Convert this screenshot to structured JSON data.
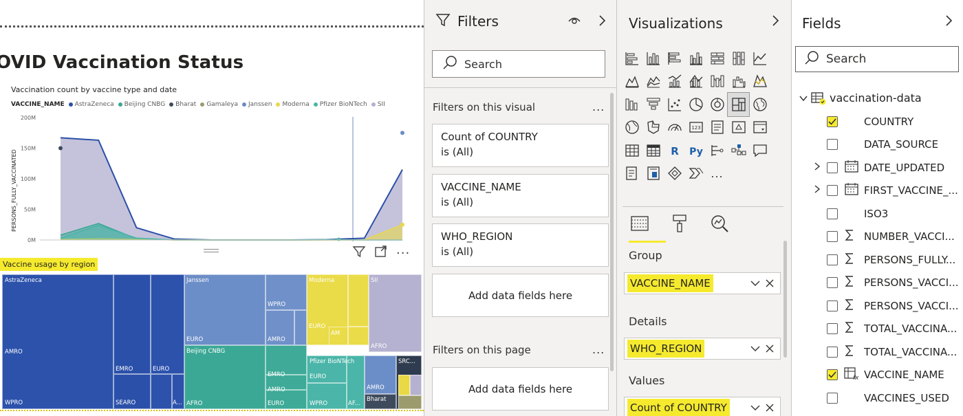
{
  "report": {
    "title": "OVID Vaccination Status",
    "chart": {
      "title": "Vaccination count by vaccine type and date",
      "legend_title": "VACCINE_NAME",
      "ylabel": "PERSONS_FULLY_VACCINATED",
      "ytick_labels": [
        "200M",
        "150M",
        "100M",
        "50M",
        "0M"
      ]
    },
    "treemap_title": "Vaccine usage by region",
    "treemap_labels": {
      "astrazeneca": "AstraZeneca",
      "amro1": "AMRO",
      "wpro1": "WPRO",
      "emro1": "EMRO",
      "searo1": "SEARO",
      "euro1": "EURO",
      "a1": "A...",
      "janssen": "Janssen",
      "wpro2": "WPRO",
      "euro2": "EURO",
      "amro2": "AMRO",
      "beijing": "Beijing CNBG",
      "emro2": "EMRO",
      "amro3": "AMRO",
      "euro3": "EURO",
      "afro1": "AFRO",
      "moderna": "Moderna",
      "euro4": "EURO",
      "am": "AM",
      "sii": "SII",
      "afro2": "AFRO",
      "pfizer": "Pfizer BioNTech",
      "euro5": "EURO",
      "wpro3": "WPRO",
      "af": "AF...",
      "amro4": "AMRO",
      "bharat": "Bharat",
      "src": "SRC..."
    }
  },
  "chart_data": {
    "type": "area",
    "title": "Vaccination count by vaccine type and date",
    "xlabel": "",
    "ylabel": "PERSONS_FULLY_VACCINATED",
    "ylim": [
      0,
      200000000
    ],
    "legend_placement": "top-left",
    "grid": false,
    "series": [
      {
        "name": "AstraZeneca",
        "color": "#2b4fa8",
        "values": [
          167000000,
          163000000,
          20000000,
          1500000,
          0,
          0,
          0,
          500000,
          3000000,
          115000000
        ]
      },
      {
        "name": "Beijing CNBG",
        "color": "#3aa895",
        "values": [
          8000000,
          27000000,
          2000000,
          0,
          0,
          0,
          0,
          0,
          0,
          0
        ]
      },
      {
        "name": "Bharat",
        "color": "#3f4a5a",
        "values": [
          150000000,
          null,
          null,
          null,
          null,
          null,
          null,
          null,
          null,
          null
        ]
      },
      {
        "name": "Gamaleya",
        "color": "#9b9b6e",
        "values": [
          0,
          0,
          0,
          0,
          0,
          0,
          0,
          0,
          0,
          0
        ]
      },
      {
        "name": "Janssen",
        "color": "#6b8cc7",
        "values": [
          null,
          null,
          null,
          null,
          null,
          null,
          null,
          null,
          null,
          175000000
        ]
      },
      {
        "name": "Moderna",
        "color": "#e8d84a",
        "values": [
          1000000,
          2000000,
          1000000,
          0,
          0,
          0,
          0,
          0,
          0,
          25000000
        ]
      },
      {
        "name": "Pfizer BioNTech",
        "color": "#4ab5a8",
        "values": [
          3000000,
          24000000,
          3000000,
          0,
          0,
          0,
          0,
          500000,
          0,
          0
        ]
      },
      {
        "name": "SII",
        "color": "#b4b0cf",
        "values": [
          0,
          0,
          0,
          0,
          0,
          0,
          0,
          0,
          0,
          0
        ]
      }
    ]
  },
  "filters": {
    "title": "Filters",
    "search_placeholder": "Search",
    "section_visual": "Filters on this visual",
    "section_page": "Filters on this page",
    "more": "...",
    "cards": [
      {
        "name": "Count of COUNTRY",
        "value": "is (All)"
      },
      {
        "name": "VACCINE_NAME",
        "value": "is (All)"
      },
      {
        "name": "WHO_REGION",
        "value": "is (All)"
      }
    ],
    "add_visual": "Add data fields here",
    "add_page": "Add data fields here"
  },
  "visualizations": {
    "title": "Visualizations",
    "more": "...",
    "wells": [
      {
        "label": "Group",
        "value": "VACCINE_NAME"
      },
      {
        "label": "Details",
        "value": "WHO_REGION"
      },
      {
        "label": "Values",
        "value": "Count of COUNTRY"
      }
    ]
  },
  "fields": {
    "title": "Fields",
    "search_placeholder": "Search",
    "table_name": "vaccination-data",
    "items": [
      {
        "name": "COUNTRY",
        "checked": true,
        "type": "text",
        "expandable": false
      },
      {
        "name": "DATA_SOURCE",
        "checked": false,
        "type": "text",
        "expandable": false
      },
      {
        "name": "DATE_UPDATED",
        "checked": false,
        "type": "date",
        "expandable": true
      },
      {
        "name": "FIRST_VACCINE_...",
        "checked": false,
        "type": "date",
        "expandable": true
      },
      {
        "name": "ISO3",
        "checked": false,
        "type": "text",
        "expandable": false
      },
      {
        "name": "NUMBER_VACCI...",
        "checked": false,
        "type": "sum",
        "expandable": false
      },
      {
        "name": "PERSONS_FULLY...",
        "checked": false,
        "type": "sum",
        "expandable": false
      },
      {
        "name": "PERSONS_VACCI...",
        "checked": false,
        "type": "sum",
        "expandable": false
      },
      {
        "name": "PERSONS_VACCI...",
        "checked": false,
        "type": "sum",
        "expandable": false
      },
      {
        "name": "TOTAL_VACCINA...",
        "checked": false,
        "type": "sum",
        "expandable": false
      },
      {
        "name": "TOTAL_VACCINA...",
        "checked": false,
        "type": "sum",
        "expandable": false
      },
      {
        "name": "VACCINE_NAME",
        "checked": true,
        "type": "calc",
        "expandable": false
      },
      {
        "name": "VACCINES_USED",
        "checked": false,
        "type": "text",
        "expandable": false
      }
    ]
  }
}
